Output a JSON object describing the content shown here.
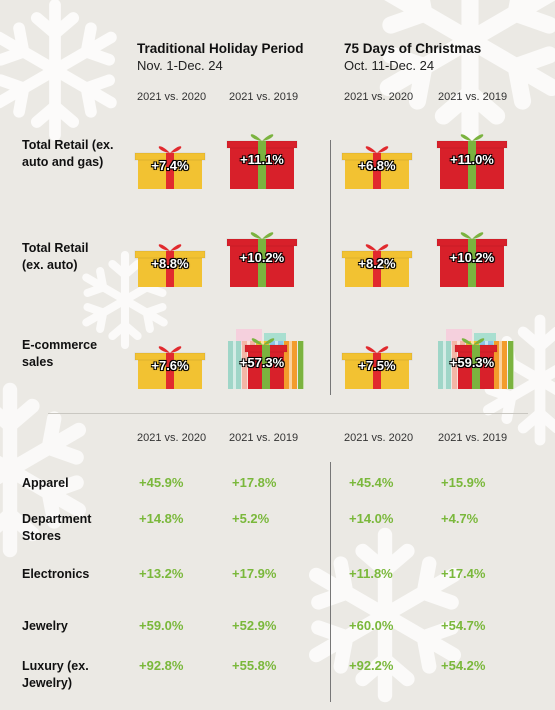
{
  "periods": [
    {
      "title": "Traditional Holiday Period",
      "dates": "Nov. 1-Dec. 24"
    },
    {
      "title": "75 Days of Christmas",
      "dates": "Oct. 11-Dec. 24"
    }
  ],
  "column_headers": [
    "2021 vs. 2020",
    "2021 vs. 2019"
  ],
  "colors": {
    "small_gift": "#f2c232",
    "large_gift": "#d8202a",
    "value_green": "#7ab83b",
    "ribbon_red": "#e12a2e",
    "ribbon_green": "#7bb33f"
  },
  "chart_data": {
    "type": "table",
    "unit": "%",
    "top_section": {
      "rows": [
        {
          "label": "Total Retail (ex. auto and gas)",
          "values": [
            "+7.4%",
            "+11.1%",
            "+6.8%",
            "+11.0%"
          ]
        },
        {
          "label": "Total Retail (ex. auto)",
          "values": [
            "+8.8%",
            "+10.2%",
            "+8.2%",
            "+10.2%"
          ]
        },
        {
          "label": "E-commerce sales",
          "values": [
            "+7.6%",
            "+57.3%",
            "+7.5%",
            "+59.3%"
          ]
        }
      ]
    },
    "bottom_section": {
      "rows": [
        {
          "label": "Apparel",
          "values": [
            "+45.9%",
            "+17.8%",
            "+45.4%",
            "+15.9%"
          ]
        },
        {
          "label": "Department Stores",
          "values": [
            "+14.8%",
            "+5.2%",
            "+14.0%",
            "+4.7%"
          ]
        },
        {
          "label": "Electronics",
          "values": [
            "+13.2%",
            "+17.9%",
            "+11.8%",
            "+17.4%"
          ]
        },
        {
          "label": "Jewelry",
          "values": [
            "+59.0%",
            "+52.9%",
            "+60.0%",
            "+54.7%"
          ]
        },
        {
          "label": "Luxury (ex. Jewelry)",
          "values": [
            "+92.8%",
            "+55.8%",
            "+92.2%",
            "+54.2%"
          ]
        }
      ]
    }
  }
}
